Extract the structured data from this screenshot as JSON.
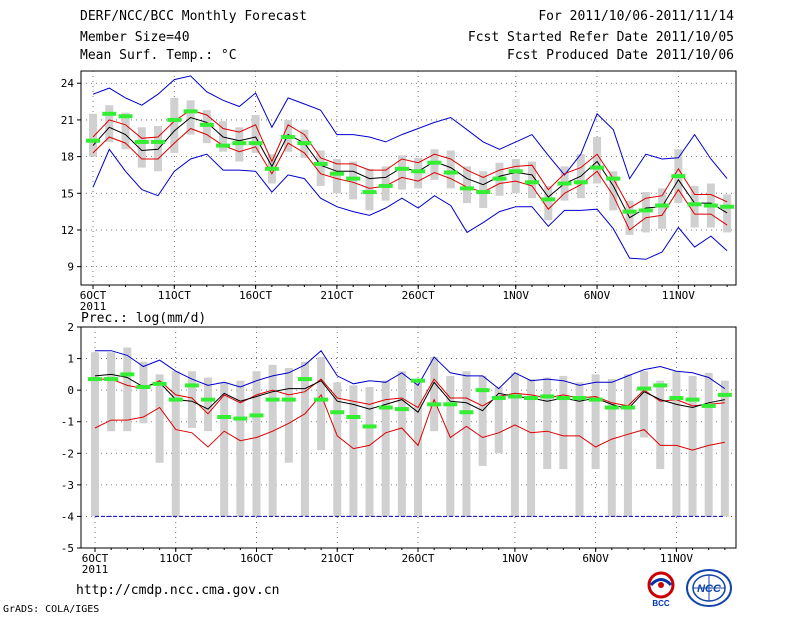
{
  "header": {
    "title": "DERF/NCC/BCC Monthly Forecast",
    "member_size": "Member Size=40",
    "variable": "Mean Surf. Temp.: °C",
    "period": "For 2011/10/06-2011/11/14",
    "fcst_started": "Fcst Started Refer Date 2011/10/05",
    "fcst_produced": "Fcst Produced Date 2011/10/06"
  },
  "footer": {
    "url": "http://cmdp.ncc.cma.gov.cn",
    "credit": "GrADS: COLA/IGES",
    "logo_bcc": "BCC",
    "logo_ncc": "NCC"
  },
  "colors": {
    "envelope": "#0000cc",
    "spread": "#dd0000",
    "mean": "#000000",
    "box": "#d0d0d0",
    "marker": "#33ee33"
  },
  "chart_data": [
    {
      "type": "line",
      "title": "Mean Surf. Temp.: °C",
      "ylim": [
        7.5,
        25
      ],
      "yticks": [
        9,
        12,
        15,
        18,
        21,
        24
      ],
      "x_tick_labels": [
        {
          "day": 0,
          "label": "6OCT",
          "sub": "2011"
        },
        {
          "day": 5,
          "label": "11OCT"
        },
        {
          "day": 10,
          "label": "16OCT"
        },
        {
          "day": 15,
          "label": "21OCT"
        },
        {
          "day": 20,
          "label": "26OCT"
        },
        {
          "day": 26,
          "label": "1NOV"
        },
        {
          "day": 31,
          "label": "6NOV"
        },
        {
          "day": 36,
          "label": "11NOV"
        }
      ],
      "days": 40,
      "series": [
        {
          "name": "max",
          "values": [
            23.1,
            23.6,
            22.8,
            22.2,
            23.1,
            24.3,
            24.6,
            23.3,
            22.6,
            22.1,
            23.2,
            20.4,
            22.8,
            22.3,
            21.8,
            19.8,
            19.8,
            19.6,
            19.2,
            19.8,
            20.3,
            20.8,
            21.2,
            20.2,
            19.2,
            18.6,
            19.2,
            19.8,
            18.1,
            16.5,
            18.2,
            21.5,
            20.2,
            16.2,
            18.2,
            17.8,
            17.9,
            19.8,
            17.8,
            16.2
          ]
        },
        {
          "name": "upper",
          "values": [
            19.6,
            21.0,
            20.6,
            19.5,
            19.6,
            20.9,
            21.8,
            21.4,
            20.3,
            20.0,
            20.6,
            17.6,
            20.6,
            19.8,
            17.9,
            17.4,
            17.4,
            16.9,
            16.9,
            17.8,
            17.5,
            18.2,
            17.8,
            16.9,
            16.3,
            16.9,
            17.2,
            17.3,
            15.3,
            16.6,
            17.1,
            18.2,
            16.2,
            13.8,
            14.6,
            14.8,
            17.0,
            14.9,
            14.9,
            14.3
          ]
        },
        {
          "name": "mean",
          "values": [
            18.9,
            20.4,
            19.8,
            18.5,
            18.6,
            20.1,
            21.2,
            20.8,
            19.6,
            19.3,
            19.6,
            17.2,
            19.8,
            19.1,
            17.3,
            16.8,
            16.8,
            16.2,
            16.3,
            17.1,
            16.8,
            17.6,
            17.1,
            16.2,
            15.7,
            16.4,
            16.7,
            16.5,
            14.7,
            15.8,
            16.4,
            17.6,
            15.6,
            13.0,
            13.8,
            13.9,
            16.1,
            14.2,
            14.2,
            13.4
          ]
        },
        {
          "name": "lower",
          "values": [
            18.3,
            19.6,
            19.1,
            17.8,
            17.8,
            19.1,
            20.3,
            19.8,
            18.9,
            18.4,
            18.8,
            16.6,
            19.1,
            18.3,
            16.6,
            16.2,
            15.9,
            15.4,
            15.6,
            16.3,
            16.0,
            16.7,
            16.2,
            15.5,
            15.1,
            15.8,
            16.0,
            15.6,
            13.7,
            15.0,
            15.7,
            16.8,
            14.8,
            12.0,
            13.0,
            13.2,
            15.3,
            13.3,
            13.3,
            12.4
          ]
        },
        {
          "name": "min",
          "values": [
            15.5,
            18.6,
            16.8,
            15.3,
            14.8,
            16.8,
            17.8,
            18.2,
            16.9,
            16.9,
            16.8,
            15.1,
            16.5,
            16.2,
            14.6,
            13.9,
            13.5,
            13.2,
            13.8,
            14.6,
            13.8,
            14.8,
            14.0,
            11.8,
            12.6,
            13.5,
            13.9,
            13.9,
            12.3,
            13.6,
            13.6,
            13.7,
            12.1,
            9.7,
            9.6,
            10.2,
            12.2,
            10.6,
            11.5,
            10.3
          ]
        },
        {
          "name": "observed",
          "values": [
            19.3,
            21.5,
            21.3,
            19.2,
            19.2,
            21.0,
            21.7,
            20.6,
            18.9,
            19.1,
            19.1,
            17.0,
            19.6,
            19.1,
            17.4,
            16.6,
            16.2,
            15.1,
            15.6,
            17.0,
            16.8,
            17.5,
            16.7,
            15.4,
            15.1,
            16.2,
            16.8,
            15.9,
            14.5,
            15.8,
            15.9,
            17.1,
            16.2,
            13.5,
            13.6,
            14.0,
            16.4,
            14.1,
            14.0,
            13.9
          ]
        }
      ],
      "boxes": [
        [
          18.0,
          21.5
        ],
        [
          19.2,
          22.2
        ],
        [
          18.6,
          21.6
        ],
        [
          17.1,
          20.4
        ],
        [
          16.8,
          20.5
        ],
        [
          18.3,
          22.8
        ],
        [
          19.8,
          22.6
        ],
        [
          19.1,
          21.8
        ],
        [
          18.4,
          20.9
        ],
        [
          17.6,
          20.4
        ],
        [
          18.3,
          21.4
        ],
        [
          15.8,
          18.2
        ],
        [
          18.4,
          21.0
        ],
        [
          17.9,
          20.2
        ],
        [
          15.6,
          18.5
        ],
        [
          15.0,
          17.8
        ],
        [
          14.5,
          17.6
        ],
        [
          13.6,
          17.0
        ],
        [
          14.4,
          17.2
        ],
        [
          15.3,
          18.1
        ],
        [
          15.4,
          17.9
        ],
        [
          16.1,
          18.6
        ],
        [
          15.4,
          18.5
        ],
        [
          14.2,
          17.2
        ],
        [
          13.8,
          16.8
        ],
        [
          14.8,
          17.5
        ],
        [
          15.0,
          17.8
        ],
        [
          14.6,
          17.6
        ],
        [
          12.8,
          15.6
        ],
        [
          14.4,
          17.2
        ],
        [
          14.6,
          18.2
        ],
        [
          15.8,
          19.6
        ],
        [
          13.6,
          16.8
        ],
        [
          11.6,
          14.4
        ],
        [
          11.8,
          15.1
        ],
        [
          12.1,
          15.4
        ],
        [
          14.2,
          18.6
        ],
        [
          12.2,
          15.6
        ],
        [
          12.2,
          15.8
        ],
        [
          11.8,
          14.9
        ]
      ]
    },
    {
      "type": "line",
      "title": "Prec.: log(mm/d)",
      "ylim": [
        -5,
        2
      ],
      "yticks": [
        -5,
        -4,
        -3,
        -2,
        -1,
        0,
        1,
        2
      ],
      "x_tick_labels": [
        {
          "day": 0,
          "label": "6OCT",
          "sub": "2011"
        },
        {
          "day": 5,
          "label": "11OCT"
        },
        {
          "day": 10,
          "label": "16OCT"
        },
        {
          "day": 15,
          "label": "21OCT"
        },
        {
          "day": 20,
          "label": "26OCT"
        },
        {
          "day": 26,
          "label": "1NOV"
        },
        {
          "day": 31,
          "label": "6NOV"
        },
        {
          "day": 36,
          "label": "11NOV"
        }
      ],
      "days": 40,
      "series": [
        {
          "name": "max",
          "values": [
            1.25,
            1.25,
            1.1,
            0.75,
            0.95,
            0.6,
            0.35,
            0.15,
            0.25,
            0.1,
            0.3,
            0.45,
            0.55,
            0.8,
            1.25,
            0.45,
            0.2,
            0.3,
            0.25,
            0.55,
            0.15,
            1.05,
            0.55,
            0.45,
            0.45,
            0.05,
            0.55,
            0.3,
            0.35,
            0.3,
            0.15,
            0.25,
            0.25,
            0.45,
            0.65,
            0.75,
            0.6,
            0.55,
            0.4,
            0.05
          ]
        },
        {
          "name": "upper",
          "values": [
            0.35,
            0.35,
            0.15,
            0.05,
            0.3,
            -0.15,
            -0.25,
            -0.75,
            -0.15,
            -0.4,
            -0.15,
            0.0,
            -0.15,
            -0.05,
            0.35,
            -0.25,
            -0.35,
            -0.45,
            -0.3,
            -0.25,
            -0.55,
            0.35,
            -0.25,
            -0.25,
            -0.5,
            -0.2,
            -0.1,
            -0.15,
            -0.25,
            -0.15,
            -0.25,
            -0.2,
            -0.4,
            -0.5,
            0.0,
            -0.35,
            -0.3,
            -0.5,
            -0.45,
            -0.4
          ]
        },
        {
          "name": "mean",
          "values": [
            0.45,
            0.5,
            0.4,
            0.1,
            0.25,
            -0.3,
            -0.35,
            -0.6,
            -0.1,
            -0.35,
            -0.2,
            -0.05,
            0.05,
            0.05,
            0.3,
            -0.35,
            -0.45,
            -0.6,
            -0.45,
            -0.3,
            -0.7,
            0.25,
            -0.35,
            -0.4,
            -0.65,
            -0.1,
            -0.2,
            -0.25,
            -0.35,
            -0.25,
            -0.35,
            -0.25,
            -0.45,
            -0.6,
            -0.05,
            -0.3,
            -0.45,
            -0.55,
            -0.4,
            -0.3
          ]
        },
        {
          "name": "lower",
          "values": [
            -1.2,
            -0.95,
            -0.95,
            -0.85,
            -0.55,
            -1.25,
            -1.35,
            -1.8,
            -1.3,
            -1.6,
            -1.5,
            -1.3,
            -1.05,
            -0.75,
            -0.15,
            -1.45,
            -1.85,
            -1.75,
            -1.35,
            -1.2,
            -1.75,
            -0.3,
            -1.5,
            -1.15,
            -1.5,
            -1.35,
            -1.1,
            -1.35,
            -1.3,
            -1.45,
            -1.45,
            -1.8,
            -1.55,
            -1.4,
            -1.25,
            -1.75,
            -1.75,
            -1.9,
            -1.75,
            -1.65
          ]
        },
        {
          "name": "min",
          "values": [
            -4,
            -4,
            -4,
            -4,
            -4,
            -4,
            -4,
            -4,
            -4,
            -4,
            -4,
            -4,
            -4,
            -4,
            -4,
            -4,
            -4,
            -4,
            -4,
            -4,
            -4,
            -4,
            -4,
            -4,
            -4,
            -4,
            -4,
            -4,
            -4,
            -4,
            -4,
            -4,
            -4,
            -4,
            -4,
            -4,
            -4,
            -4,
            -4,
            -4
          ]
        },
        {
          "name": "observed",
          "values": [
            0.35,
            0.35,
            0.5,
            0.1,
            0.2,
            -0.3,
            0.15,
            -0.3,
            -0.85,
            -0.9,
            -0.8,
            -0.3,
            -0.3,
            0.35,
            -0.3,
            -0.7,
            -0.85,
            -1.15,
            -0.55,
            -0.6,
            0.3,
            -0.45,
            -0.45,
            -0.7,
            0.0,
            -0.25,
            -0.2,
            -0.25,
            -0.2,
            -0.25,
            -0.25,
            -0.3,
            -0.55,
            -0.55,
            0.05,
            0.15,
            -0.25,
            -0.3,
            -0.5,
            -0.15
          ]
        }
      ],
      "boxes": [
        [
          -4,
          1.2
        ],
        [
          -1.3,
          1.2
        ],
        [
          -1.3,
          1.35
        ],
        [
          -1.05,
          0.9
        ],
        [
          -2.3,
          0.5
        ],
        [
          -4,
          0.6
        ],
        [
          -1.2,
          0.6
        ],
        [
          -1.3,
          0.4
        ],
        [
          -4,
          0.25
        ],
        [
          -4,
          0.3
        ],
        [
          -4,
          0.6
        ],
        [
          -4,
          0.8
        ],
        [
          -2.3,
          0.7
        ],
        [
          -4,
          0.9
        ],
        [
          -1.9,
          1.05
        ],
        [
          -4,
          0.25
        ],
        [
          -4,
          0.15
        ],
        [
          -4,
          0.1
        ],
        [
          -4,
          0.3
        ],
        [
          -4,
          0.6
        ],
        [
          -4,
          0.3
        ],
        [
          -1.3,
          1.05
        ],
        [
          -4,
          0.45
        ],
        [
          -4,
          0.6
        ],
        [
          -2.4,
          0.45
        ],
        [
          -2.0,
          0.1
        ],
        [
          -4,
          0.55
        ],
        [
          -4,
          0.35
        ],
        [
          -2.5,
          0.4
        ],
        [
          -2.5,
          0.45
        ],
        [
          -4,
          0.25
        ],
        [
          -2.5,
          0.5
        ],
        [
          -4,
          0.35
        ],
        [
          -4,
          0.5
        ],
        [
          -1.5,
          0.6
        ],
        [
          -2.5,
          0.3
        ],
        [
          -4,
          0.6
        ],
        [
          -4,
          0.45
        ],
        [
          -4,
          0.55
        ],
        [
          -4,
          0.3
        ]
      ]
    }
  ]
}
